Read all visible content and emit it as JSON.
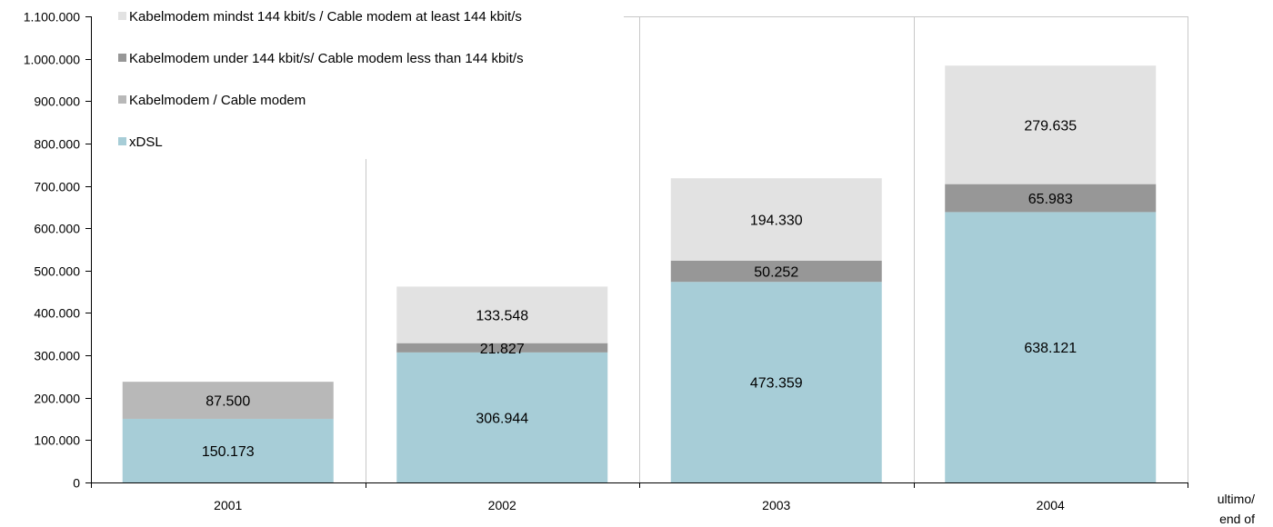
{
  "chart_data": {
    "type": "bar",
    "stacked": true,
    "categories": [
      "2001",
      "2002",
      "2003",
      "2004"
    ],
    "xlabel": "ultimo/ end of",
    "ylabel": "",
    "ylim": [
      0,
      1100000
    ],
    "yticks": [
      0,
      100000,
      200000,
      300000,
      400000,
      500000,
      600000,
      700000,
      800000,
      900000,
      1000000,
      1100000
    ],
    "ytick_labels": [
      "0",
      "100.000",
      "200.000",
      "300.000",
      "400.000",
      "500.000",
      "600.000",
      "700.000",
      "800.000",
      "900.000",
      "1.000.000",
      "1.100.000"
    ],
    "grid": "vertical lines between categories",
    "legend_position": "top-left",
    "series": [
      {
        "name": "xDSL",
        "color": "#a7cdd7",
        "values": [
          150173,
          306944,
          473359,
          638121
        ],
        "labels": [
          "150.173",
          "306.944",
          "473.359",
          "638.121"
        ]
      },
      {
        "name": "Kabelmodem / Cable modem",
        "color": "#b8b8b8",
        "values": [
          87500,
          null,
          null,
          null
        ],
        "labels": [
          "87.500",
          "",
          "",
          ""
        ]
      },
      {
        "name": "Kabelmodem under 144 kbit/s/ Cable modem less than 144 kbit/s",
        "color": "#979797",
        "values": [
          null,
          21827,
          50252,
          65983
        ],
        "labels": [
          "",
          "21.827",
          "50.252",
          "65.983"
        ]
      },
      {
        "name": "Kabelmodem mindst 144 kbit/s / Cable modem at least 144 kbit/s",
        "color": "#e2e2e2",
        "values": [
          null,
          133548,
          194330,
          279635
        ],
        "labels": [
          "",
          "133.548",
          "194.330",
          "279.635"
        ]
      }
    ],
    "legend_order": [
      3,
      2,
      1,
      0
    ]
  }
}
